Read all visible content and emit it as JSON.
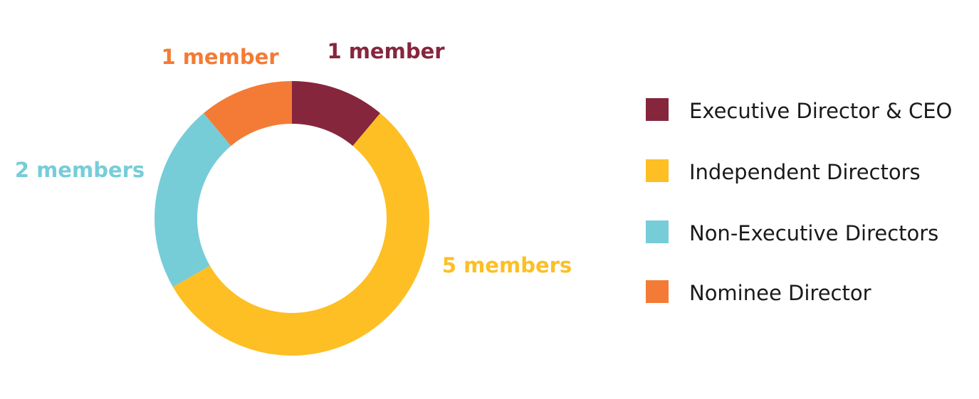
{
  "chart_data": {
    "type": "pie",
    "categories": [
      "Executive Director & CEO",
      "Independent Directors",
      "Non-Executive Directors",
      "Nominee Director"
    ],
    "values": [
      1,
      5,
      2,
      1
    ],
    "data_labels": [
      "1 member",
      "5 members",
      "2 members",
      "1 member"
    ],
    "colors": [
      "#86263d",
      "#fdbf24",
      "#76cdd8",
      "#f47b35"
    ],
    "style": "donut",
    "legend": "right"
  }
}
